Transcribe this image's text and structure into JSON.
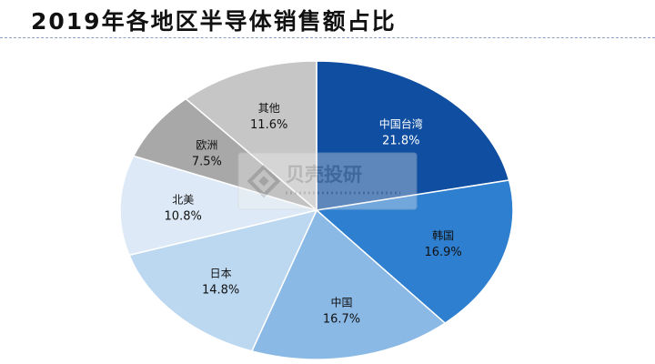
{
  "page": {
    "title": "2019年各地区半导体销售额占比"
  },
  "watermark": {
    "text": "贝壳投研"
  },
  "chart_data": {
    "type": "pie",
    "title": "2019年各地区半导体销售额占比",
    "start_angle_deg": 0,
    "direction": "clockwise",
    "slices": [
      {
        "label": "中国台湾",
        "value": 21.8,
        "display": "21.8%",
        "color": "#0f4ea0",
        "text_color": "#ffffff"
      },
      {
        "label": "韩国",
        "value": 16.9,
        "display": "16.9%",
        "color": "#2e7fd0",
        "text_color": "#111111"
      },
      {
        "label": "中国",
        "value": 16.7,
        "display": "16.7%",
        "color": "#8ab9e6",
        "text_color": "#111111"
      },
      {
        "label": "日本",
        "value": 14.8,
        "display": "14.8%",
        "color": "#bcd7f0",
        "text_color": "#111111"
      },
      {
        "label": "北美",
        "value": 10.8,
        "display": "10.8%",
        "color": "#dde9f6",
        "text_color": "#111111"
      },
      {
        "label": "欧洲",
        "value": 7.5,
        "display": "7.5%",
        "color": "#a8a8a8",
        "text_color": "#111111"
      },
      {
        "label": "其他",
        "value": 11.6,
        "display": "11.6%",
        "color": "#c6c6c6",
        "text_color": "#111111"
      }
    ]
  }
}
